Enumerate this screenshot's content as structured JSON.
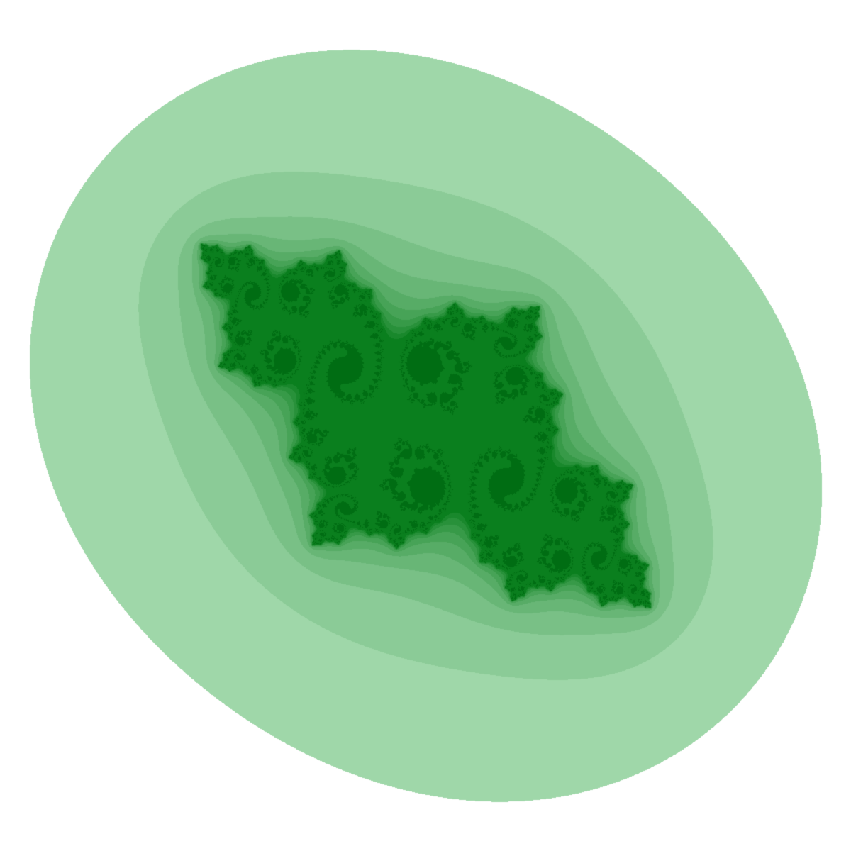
{
  "image": {
    "subject": "julia-set-escape-time-fractal",
    "background_color": "#ffffff",
    "palette": {
      "outer": "#b7e5c0",
      "inner": "#0a7f1e",
      "core": "#006d13"
    },
    "julia_parameter": {
      "re": -0.77,
      "im": 0.12
    },
    "escape_bands": 10,
    "max_iterations": 60
  }
}
